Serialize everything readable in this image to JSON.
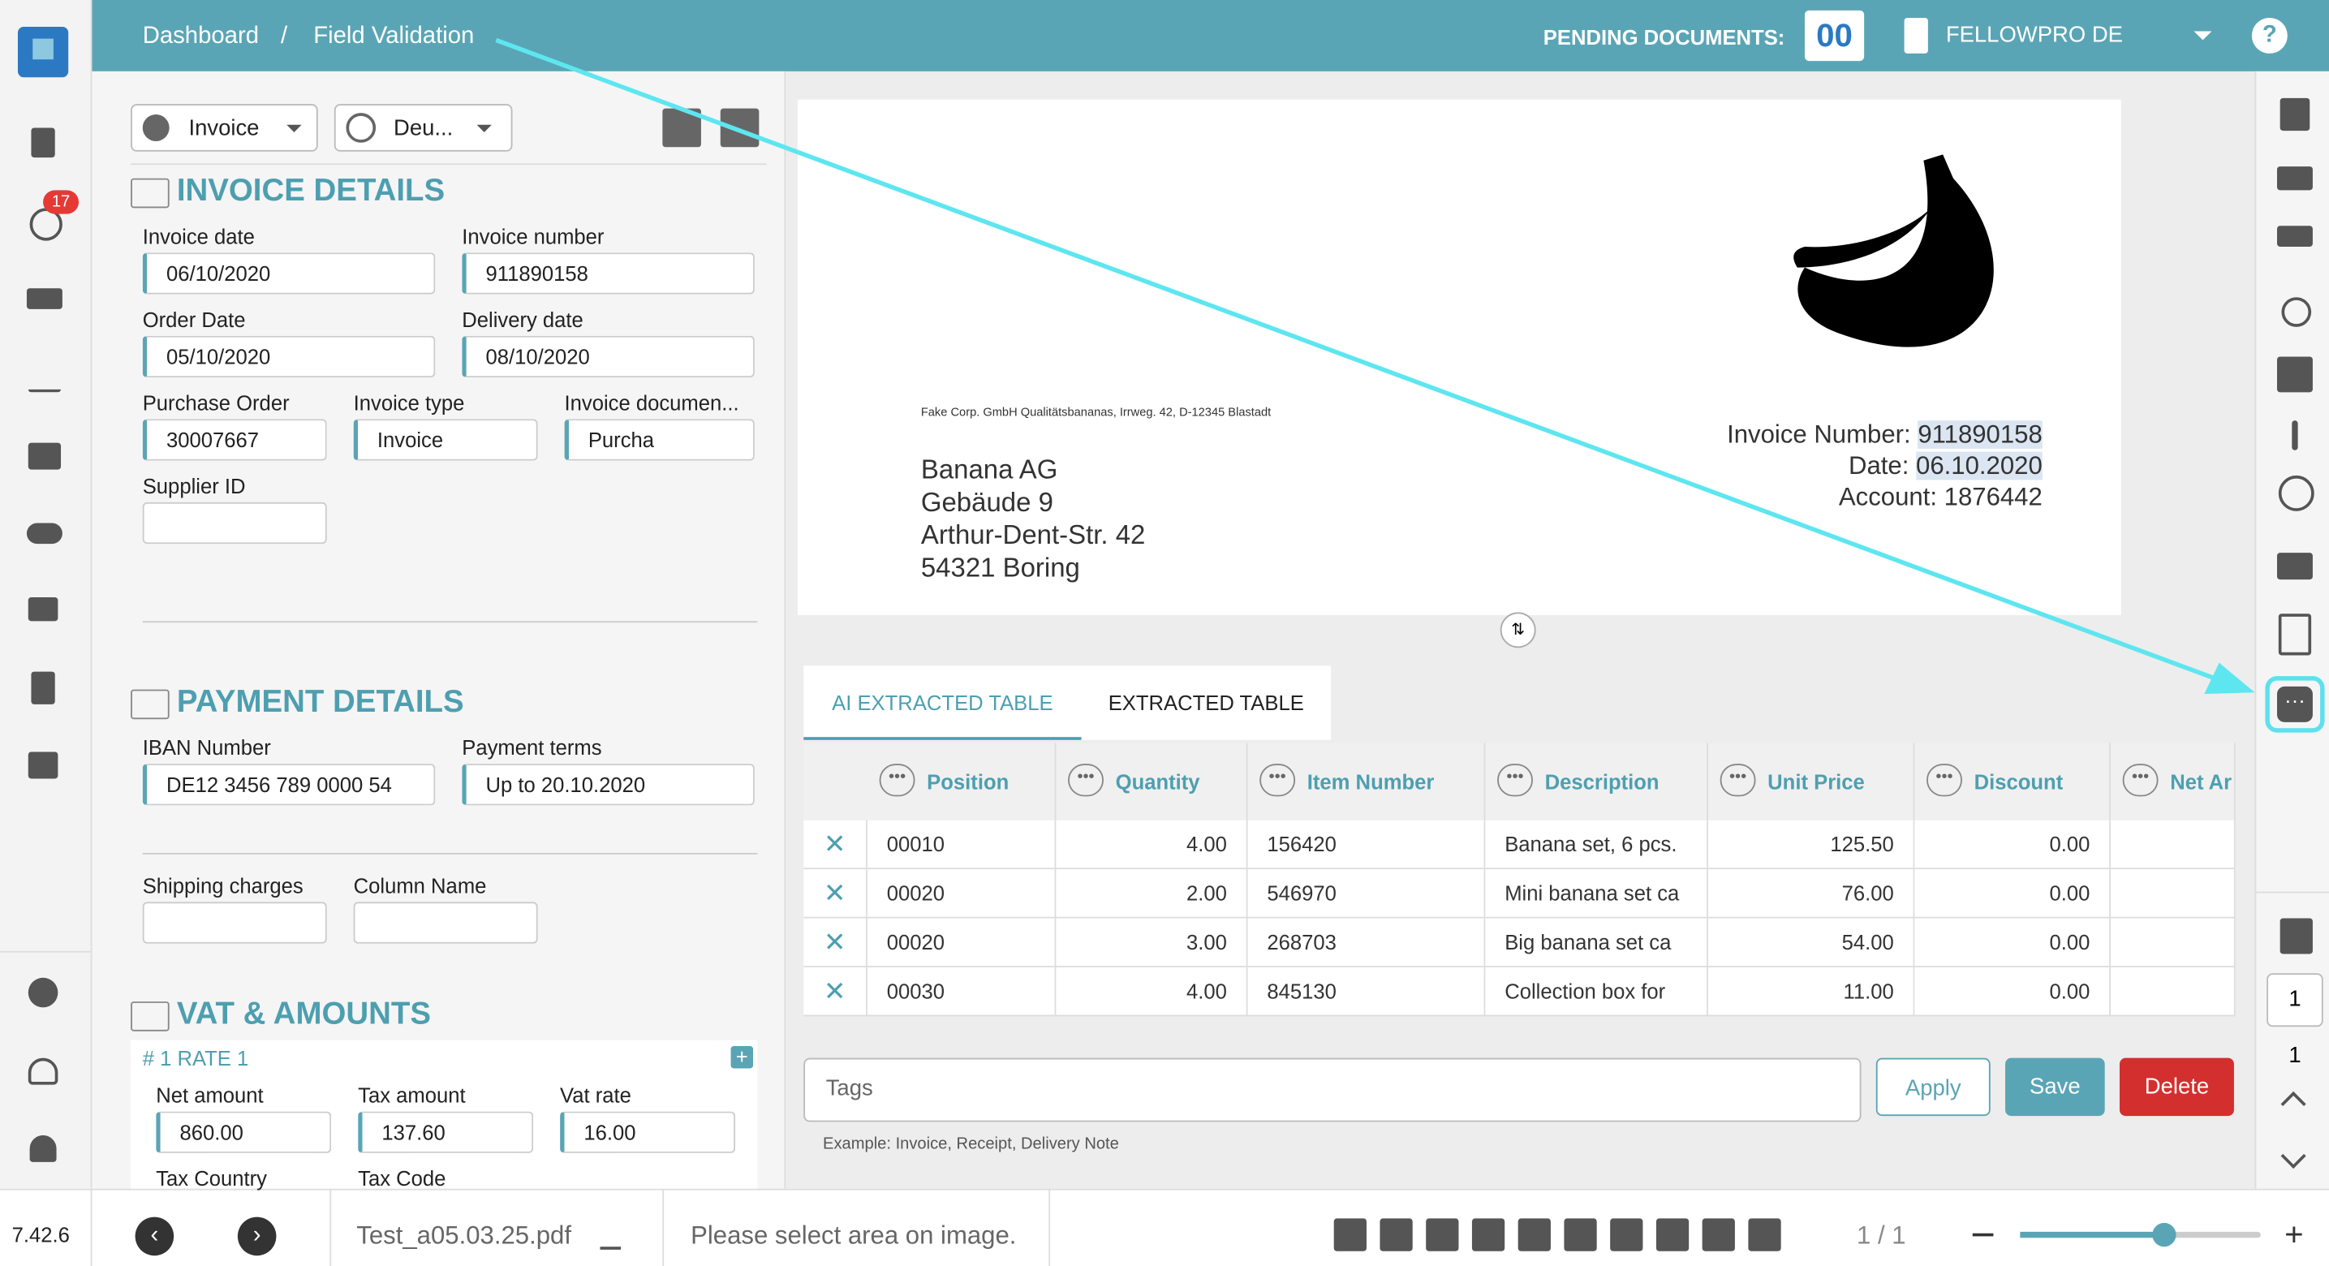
{
  "header": {
    "breadcrumb": [
      "Dashboard",
      "Field Validation"
    ],
    "separator": "/",
    "pending_label": "PENDING DOCUMENTS:",
    "pending_count": "00",
    "company": "FELLOWPRO DE"
  },
  "sidebar": {
    "badge": "17",
    "version": "7.42.6"
  },
  "toolbar": {
    "document_type": "Invoice",
    "language": "Deu..."
  },
  "invoice_details": {
    "title": "INVOICE DETAILS",
    "fields": [
      {
        "label": "Invoice date",
        "value": "06/10/2020"
      },
      {
        "label": "Invoice number",
        "value": "911890158"
      },
      {
        "label": "Order Date",
        "value": "05/10/2020"
      },
      {
        "label": "Delivery date",
        "value": "08/10/2020"
      },
      {
        "label": "Purchase Order",
        "value": "30007667"
      },
      {
        "label": "Invoice type",
        "value": "Invoice"
      },
      {
        "label": "Invoice documen...",
        "value": "Purcha"
      },
      {
        "label": "Supplier ID"
      }
    ]
  },
  "payment_details": {
    "title": "PAYMENT DETAILS",
    "fields": [
      {
        "label": "IBAN Number",
        "value": "DE12 3456 789 0000 54"
      },
      {
        "label": "Payment terms",
        "value": "Up to 20.10.2020"
      },
      {
        "label": "Shipping charges"
      },
      {
        "label": "Column Name"
      }
    ]
  },
  "vat_amounts": {
    "title": "VAT & AMOUNTS",
    "rate_title": "# 1 RATE 1",
    "fields": [
      {
        "label": "Net amount",
        "value": "860.00"
      },
      {
        "label": "Tax amount",
        "value": "137.60"
      },
      {
        "label": "Vat rate",
        "value": "16.00"
      },
      {
        "label": "Tax Country"
      },
      {
        "label": "Tax Code"
      }
    ]
  },
  "document": {
    "sender": "Fake Corp. GmbH Qualitätsbananas, Irrweg. 42, D-12345 Blastadt",
    "address": [
      "Banana AG",
      "Gebäude 9",
      "Arthur-Dent-Str. 42",
      "54321 Boring"
    ],
    "meta": [
      {
        "label": "Invoice Number:",
        "value": "911890158"
      },
      {
        "label": "Date:",
        "value": "06.10.2020"
      },
      {
        "label": "Account:",
        "value": "1876442"
      }
    ]
  },
  "tabs": [
    "AI EXTRACTED TABLE",
    "EXTRACTED TABLE"
  ],
  "table": {
    "columns": [
      "Position",
      "Quantity",
      "Item Number",
      "Description",
      "Unit Price",
      "Discount",
      "Net Ar"
    ],
    "rows": [
      [
        "00010",
        "4.00",
        "156420",
        "Banana set, 6 pcs.",
        "125.50",
        "0.00"
      ],
      [
        "00020",
        "2.00",
        "546970",
        "Mini banana set ca",
        "76.00",
        "0.00"
      ],
      [
        "00020",
        "3.00",
        "268703",
        "Big banana set ca",
        "54.00",
        "0.00"
      ],
      [
        "00030",
        "4.00",
        "845130",
        "Collection box for",
        "11.00",
        "0.00"
      ]
    ]
  },
  "tags": {
    "placeholder": "Tags",
    "hint": "Example: Invoice, Receipt, Delivery Note",
    "buttons": [
      "Apply",
      "Save",
      "Delete"
    ]
  },
  "footer": {
    "filename": "Test_a05.03.25.pdf",
    "status": "Please select area on image.",
    "pages": "1 / 1"
  },
  "pager": {
    "current": "1",
    "total": "1"
  }
}
